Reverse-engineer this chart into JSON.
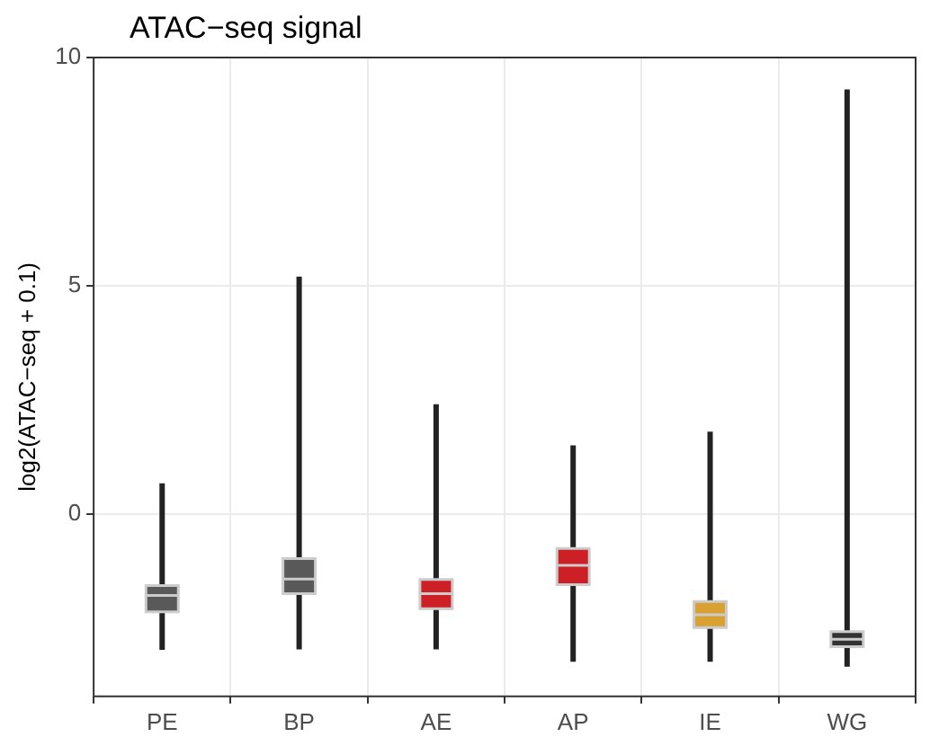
{
  "chart_data": {
    "type": "box",
    "title": "ATAC−seq signal",
    "ylabel": "log2(ATAC−seq + 0.1)",
    "categories": [
      "PE",
      "BP",
      "AE",
      "AP",
      "IE",
      "WG"
    ],
    "boxes": [
      {
        "low": -2.98,
        "q1": -2.15,
        "median": -1.79,
        "q3": -1.57,
        "high": 0.67
      },
      {
        "low": -2.97,
        "q1": -1.75,
        "median": -1.43,
        "q3": -0.98,
        "high": 5.2
      },
      {
        "low": -2.97,
        "q1": -2.08,
        "median": -1.75,
        "q3": -1.44,
        "high": 2.4
      },
      {
        "low": -3.24,
        "q1": -1.55,
        "median": -1.13,
        "q3": -0.76,
        "high": 1.5
      },
      {
        "low": -3.24,
        "q1": -2.49,
        "median": -2.21,
        "q3": -1.92,
        "high": 1.8
      },
      {
        "low": -3.35,
        "q1": -2.91,
        "median": -2.75,
        "q3": -2.58,
        "high": 9.3
      }
    ],
    "colors": [
      "#595959",
      "#595959",
      "#cc1f26",
      "#cc1f26",
      "#d9a032",
      "#333333"
    ],
    "ylim": [
      -4,
      10
    ],
    "yticks": [
      0,
      5,
      10
    ],
    "grid": true
  }
}
